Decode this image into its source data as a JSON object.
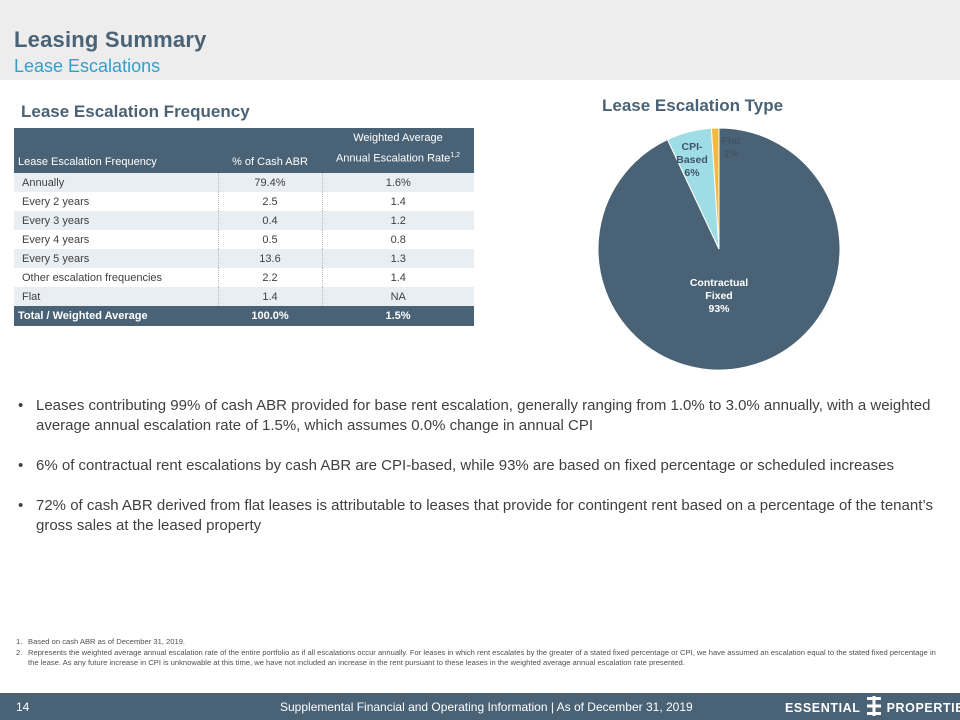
{
  "header": {
    "title": "Leasing Summary",
    "subtitle": "Lease Escalations"
  },
  "frequency": {
    "section_title": "Lease Escalation Frequency",
    "columns": {
      "c1": "Lease Escalation Frequency",
      "c2": "% of Cash ABR",
      "c3_line1": "Weighted Average",
      "c3_line2": "Annual Escalation Rate",
      "c3_sup": "1,2"
    },
    "rows": [
      {
        "label": "Annually",
        "abr": "79.4%",
        "rate": "1.6%"
      },
      {
        "label": "Every 2 years",
        "abr": "2.5",
        "rate": "1.4"
      },
      {
        "label": "Every 3 years",
        "abr": "0.4",
        "rate": "1.2"
      },
      {
        "label": "Every 4 years",
        "abr": "0.5",
        "rate": "0.8"
      },
      {
        "label": "Every 5 years",
        "abr": "13.6",
        "rate": "1.3"
      },
      {
        "label": "Other escalation frequencies",
        "abr": "2.2",
        "rate": "1.4"
      },
      {
        "label": "Flat",
        "abr": "1.4",
        "rate": "NA"
      }
    ],
    "total": {
      "label": "Total / Weighted Average",
      "abr": "100.0%",
      "rate": "1.5%"
    }
  },
  "escalation_type": {
    "section_title": "Lease Escalation Type",
    "colors": {
      "fixed": "#4a6275",
      "cpi": "#9fdde6",
      "flat": "#f3b93c",
      "label_dark": "#ffffff",
      "label_light": "#3f5566"
    },
    "chart_data": {
      "type": "pie",
      "slices": [
        {
          "label_lines": [
            "Contractual",
            "Fixed"
          ],
          "pct_label": "93%",
          "value": 93
        },
        {
          "label_lines": [
            "CPI-",
            "Based"
          ],
          "pct_label": "6%",
          "value": 6
        },
        {
          "label_lines": [
            "Flat"
          ],
          "pct_label": "1%",
          "value": 1
        }
      ]
    }
  },
  "bullets": [
    "Leases contributing 99% of cash ABR provided for base rent escalation, generally ranging from 1.0% to 3.0% annually, with a weighted average annual escalation rate of 1.5%, which assumes 0.0% change in annual CPI",
    "6% of contractual rent escalations by cash ABR are CPI-based, while 93% are based on fixed percentage or scheduled increases",
    "72% of cash ABR derived from flat leases is attributable to leases that provide for contingent rent based on a percentage of the tenant’s gross sales at the leased property"
  ],
  "bullet_glyph": "•",
  "footnotes": [
    {
      "num": "1.",
      "text": "Based on cash ABR as of December 31, 2019."
    },
    {
      "num": "2.",
      "text": "Represents the weighted average annual escalation rate of the entire portfolio as if all escalations occur annually. For leases in which rent escalates by the greater of a stated fixed percentage or CPI, we have assumed an escalation equal to the stated fixed percentage in the lease. As any future increase in CPI is unknowable at this time, we have not included an increase in the rent pursuant to these leases in the weighted average annual escalation rate presented."
    }
  ],
  "footer": {
    "page_number": "14",
    "text": "Supplemental Financial and Operating Information | As of December 31, 2019",
    "logo_left": "ESSENTIAL",
    "logo_right": "PROPERTIES"
  }
}
